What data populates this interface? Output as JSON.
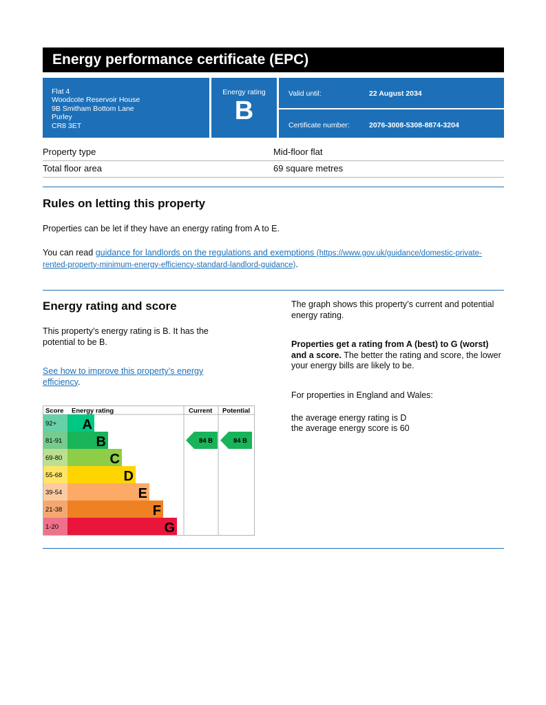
{
  "title": "Energy performance certificate (EPC)",
  "address": [
    "Flat 4",
    "Woodcote Reservoir House",
    "9B Smitham Bottom Lane",
    "Purley",
    "CR8 3ET"
  ],
  "rating_label": "Energy rating",
  "rating": "B",
  "valid_label": "Valid until:",
  "valid_value": "22 August 2034",
  "cert_label": "Certificate number:",
  "cert_value": "2076-3008-5308-8874-3204",
  "property": [
    {
      "label": "Property type",
      "value": "Mid-floor flat"
    },
    {
      "label": "Total floor area",
      "value": "69 square metres"
    }
  ],
  "rules": {
    "heading": "Rules on letting this property",
    "p1": "Properties can be let if they have an energy rating from A to E.",
    "p2_pre": "You can read ",
    "p2_link": "guidance for landlords on the regulations and exemptions",
    "p2_url": "(https://www.gov.uk/guidance/domestic-private-rented-property-minimum-energy-efficiency-standard-landlord-guidance)",
    "p2_post": "."
  },
  "score": {
    "heading": "Energy rating and score",
    "p1": "This property’s energy rating is B. It has the potential to be B.",
    "link": "See how to improve this property’s energy efficiency",
    "link_post": ".",
    "r1": "The graph shows this property’s current and potential energy rating.",
    "r2_bold": "Properties get a rating from A (best) to G (worst) and a score.",
    "r2_rest": " The better the rating and score, the lower your energy bills are likely to be.",
    "r3": "For properties in England and Wales:",
    "r4": "the average energy rating is D",
    "r5": "the average energy score is 60"
  },
  "chart_data": {
    "type": "table",
    "headers": [
      "Score",
      "Energy rating",
      "Current",
      "Potential"
    ],
    "bands": [
      {
        "range": "92+",
        "letter": "A",
        "color": "#00c781",
        "tint": "#66d1a7"
      },
      {
        "range": "81-91",
        "letter": "B",
        "color": "#19b459",
        "tint": "#74cc8f"
      },
      {
        "range": "69-80",
        "letter": "C",
        "color": "#8dce46",
        "tint": "#bbe08f"
      },
      {
        "range": "55-68",
        "letter": "D",
        "color": "#ffd500",
        "tint": "#ffe566"
      },
      {
        "range": "39-54",
        "letter": "E",
        "color": "#fcaa65",
        "tint": "#fdcba1"
      },
      {
        "range": "21-38",
        "letter": "F",
        "color": "#ef8023",
        "tint": "#f4a871"
      },
      {
        "range": "1-20",
        "letter": "G",
        "color": "#e9153b",
        "tint": "#f0718a"
      }
    ],
    "current": {
      "score": 84,
      "letter": "B"
    },
    "potential": {
      "score": 84,
      "letter": "B"
    }
  }
}
